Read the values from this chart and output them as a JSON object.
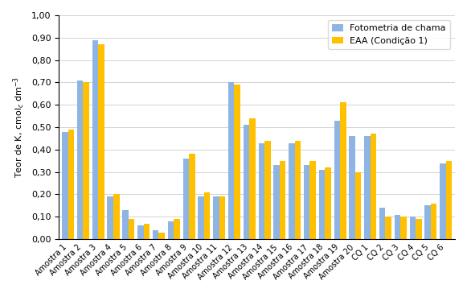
{
  "categories": [
    "Amostra 1",
    "Amostra 2",
    "Amostra 3",
    "Amostra 4",
    "Amostra 5",
    "Amostra 6",
    "Amostra 7",
    "Amostra 8",
    "Amostra 9",
    "Amostra 10",
    "Amostra 11",
    "Amostra 12",
    "Amostra 13",
    "Amostra 14",
    "Amostra 15",
    "Amostra 16",
    "Amostra 17",
    "Amostra 18",
    "Amostra 19",
    "Amostra 20",
    "CQ 1",
    "CQ 2",
    "CQ 3",
    "CQ 4",
    "CQ 5",
    "CQ 6"
  ],
  "fotometria": [
    0.48,
    0.71,
    0.89,
    0.19,
    0.13,
    0.06,
    0.04,
    0.08,
    0.36,
    0.19,
    0.19,
    0.7,
    0.51,
    0.43,
    0.33,
    0.43,
    0.33,
    0.31,
    0.53,
    0.46,
    0.46,
    0.14,
    0.11,
    0.1,
    0.15,
    0.34
  ],
  "eaa": [
    0.49,
    0.7,
    0.87,
    0.2,
    0.09,
    0.07,
    0.03,
    0.09,
    0.38,
    0.21,
    0.19,
    0.69,
    0.54,
    0.44,
    0.35,
    0.44,
    0.35,
    0.32,
    0.61,
    0.3,
    0.47,
    0.1,
    0.1,
    0.09,
    0.16,
    0.35
  ],
  "color1": "#8db4e2",
  "color2": "#ffc000",
  "ylabel": "Teor de K, cmol_c dm^-3",
  "legend1": "Fotometria de chama",
  "legend2": "EAA (Condição 1)",
  "ylim": [
    0,
    1.0
  ]
}
